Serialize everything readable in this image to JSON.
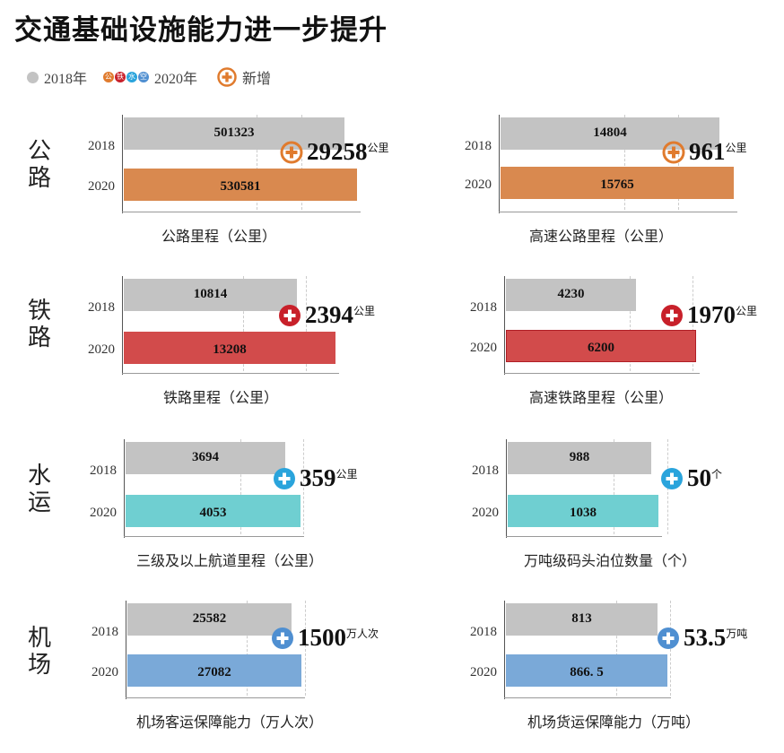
{
  "title": "交通基础设施能力进一步提升",
  "legend": {
    "y2018": "2018年",
    "y2020": "2020年",
    "mini_icons": [
      "公",
      "铁",
      "水",
      "空"
    ],
    "new_label": "新增"
  },
  "colors": {
    "gray": "#c3c3c3",
    "road": "#d9894f",
    "rail": "#d24b4b",
    "water": "#6fcfd1",
    "air": "#7aa9d8",
    "road_icon": "#e07b2e",
    "rail_icon": "#c8202a",
    "water_icon": "#2aa4dc",
    "air_icon": "#4f8fd1"
  },
  "categories": {
    "road": "公路",
    "rail": "铁路",
    "water": "水运",
    "air": "机场"
  },
  "chart_data": [
    {
      "type": "bar",
      "title": "公路里程（公里）",
      "categories": [
        "2018",
        "2020"
      ],
      "values": [
        501323,
        530581
      ],
      "value_labels": [
        "501323",
        "530581"
      ],
      "delta": "29258",
      "delta_unit": "公里"
    },
    {
      "type": "bar",
      "title": "高速公路里程（公里）",
      "categories": [
        "2018",
        "2020"
      ],
      "values": [
        14804,
        15765
      ],
      "value_labels": [
        "14804",
        "15765"
      ],
      "delta": "961",
      "delta_unit": "公里"
    },
    {
      "type": "bar",
      "title": "铁路里程（公里）",
      "categories": [
        "2018",
        "2020"
      ],
      "values": [
        10814,
        13208
      ],
      "value_labels": [
        "10814",
        "13208"
      ],
      "delta": "2394",
      "delta_unit": "公里"
    },
    {
      "type": "bar",
      "title": "高速铁路里程（公里）",
      "categories": [
        "2018",
        "2020"
      ],
      "values": [
        4230,
        6200
      ],
      "value_labels": [
        "4230",
        "6200"
      ],
      "delta": "1970",
      "delta_unit": "公里"
    },
    {
      "type": "bar",
      "title": "三级及以上航道里程（公里）",
      "categories": [
        "2018",
        "2020"
      ],
      "values": [
        3694,
        4053
      ],
      "value_labels": [
        "3694",
        "4053"
      ],
      "delta": "359",
      "delta_unit": "公里"
    },
    {
      "type": "bar",
      "title": "万吨级码头泊位数量（个）",
      "categories": [
        "2018",
        "2020"
      ],
      "values": [
        988,
        1038
      ],
      "value_labels": [
        "988",
        "1038"
      ],
      "delta": "50",
      "delta_unit": "个"
    },
    {
      "type": "bar",
      "title": "机场客运保障能力（万人次）",
      "categories": [
        "2018",
        "2020"
      ],
      "values": [
        25582,
        27082
      ],
      "value_labels": [
        "25582",
        "27082"
      ],
      "delta": "1500",
      "delta_unit": "万人次"
    },
    {
      "type": "bar",
      "title": "机场货运保障能力（万吨）",
      "categories": [
        "2018",
        "2020"
      ],
      "values": [
        813,
        866.5
      ],
      "value_labels": [
        "813",
        "866. 5"
      ],
      "delta": "53.5",
      "delta_unit": "万吨"
    }
  ]
}
